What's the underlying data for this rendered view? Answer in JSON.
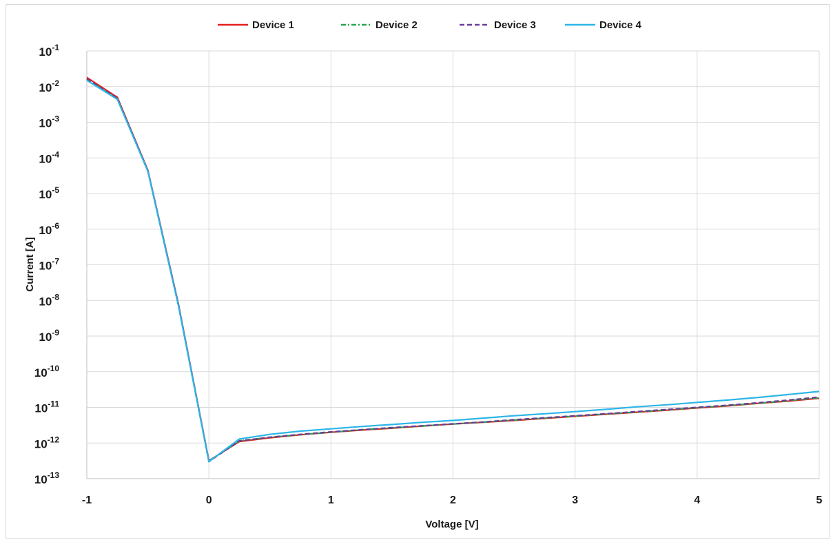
{
  "chart_data": {
    "type": "line",
    "title": "",
    "xlabel": "Voltage [V]",
    "ylabel": "Current [A]",
    "xlim": [
      -1,
      5
    ],
    "ylim": [
      1e-13,
      0.1
    ],
    "yscale": "log",
    "grid": true,
    "legend_position": "top",
    "x_ticks": [
      "-1",
      "0",
      "1",
      "2",
      "3",
      "4",
      "5"
    ],
    "y_ticks": [
      {
        "base": "10",
        "exp": "-1"
      },
      {
        "base": "10",
        "exp": "-2"
      },
      {
        "base": "10",
        "exp": "-3"
      },
      {
        "base": "10",
        "exp": "-4"
      },
      {
        "base": "10",
        "exp": "-5"
      },
      {
        "base": "10",
        "exp": "-6"
      },
      {
        "base": "10",
        "exp": "-7"
      },
      {
        "base": "10",
        "exp": "-8"
      },
      {
        "base": "10",
        "exp": "-9"
      },
      {
        "base": "10",
        "exp": "-10"
      },
      {
        "base": "10",
        "exp": "-11"
      },
      {
        "base": "10",
        "exp": "-12"
      },
      {
        "base": "10",
        "exp": "-13"
      }
    ],
    "x": [
      -1,
      -0.75,
      -0.5,
      -0.25,
      0,
      0.25,
      0.5,
      0.75,
      1,
      1.25,
      1.5,
      1.75,
      2,
      2.25,
      2.5,
      2.75,
      3,
      3.25,
      3.5,
      3.75,
      4,
      4.25,
      4.5,
      4.75,
      5
    ],
    "series": [
      {
        "name": "Device 1",
        "color": "#e3201b",
        "dash": "",
        "values": [
          0.018,
          0.005,
          4.5e-05,
          8e-09,
          3.2e-13,
          1.1e-12,
          1.4e-12,
          1.7e-12,
          2e-12,
          2.3e-12,
          2.6e-12,
          3e-12,
          3.4e-12,
          3.8e-12,
          4.3e-12,
          4.9e-12,
          5.6e-12,
          6.4e-12,
          7.3e-12,
          8.3e-12,
          9.6e-12,
          1.1e-11,
          1.3e-11,
          1.5e-11,
          1.8e-11
        ]
      },
      {
        "name": "Device 2",
        "color": "#22a84a",
        "dash": "7 3 2 3",
        "values": [
          0.016,
          0.0046,
          4.3e-05,
          7.5e-09,
          3.1e-13,
          1.15e-12,
          1.45e-12,
          1.72e-12,
          2e-12,
          2.35e-12,
          2.65e-12,
          3e-12,
          3.4e-12,
          3.85e-12,
          4.4e-12,
          5e-12,
          5.7e-12,
          6.5e-12,
          7.4e-12,
          8.5e-12,
          9.8e-12,
          1.12e-11,
          1.3e-11,
          1.55e-11,
          1.85e-11
        ]
      },
      {
        "name": "Device 3",
        "color": "#6a3d9a",
        "dash": "7 4",
        "values": [
          0.0165,
          0.0047,
          4.4e-05,
          7.8e-09,
          3e-13,
          1.15e-12,
          1.45e-12,
          1.75e-12,
          2.05e-12,
          2.35e-12,
          2.7e-12,
          3.05e-12,
          3.45e-12,
          3.9e-12,
          4.5e-12,
          5.1e-12,
          5.8e-12,
          6.6e-12,
          7.6e-12,
          8.7e-12,
          1e-11,
          1.15e-11,
          1.35e-11,
          1.6e-11,
          1.95e-11
        ]
      },
      {
        "name": "Device 4",
        "color": "#2cb5e8",
        "dash": "",
        "values": [
          0.015,
          0.0044,
          4.2e-05,
          7.2e-09,
          3e-13,
          1.3e-12,
          1.75e-12,
          2.15e-12,
          2.5e-12,
          2.9e-12,
          3.3e-12,
          3.8e-12,
          4.3e-12,
          5e-12,
          5.8e-12,
          6.6e-12,
          7.6e-12,
          8.8e-12,
          1.03e-11,
          1.18e-11,
          1.38e-11,
          1.6e-11,
          1.9e-11,
          2.3e-11,
          2.8e-11
        ]
      }
    ]
  }
}
